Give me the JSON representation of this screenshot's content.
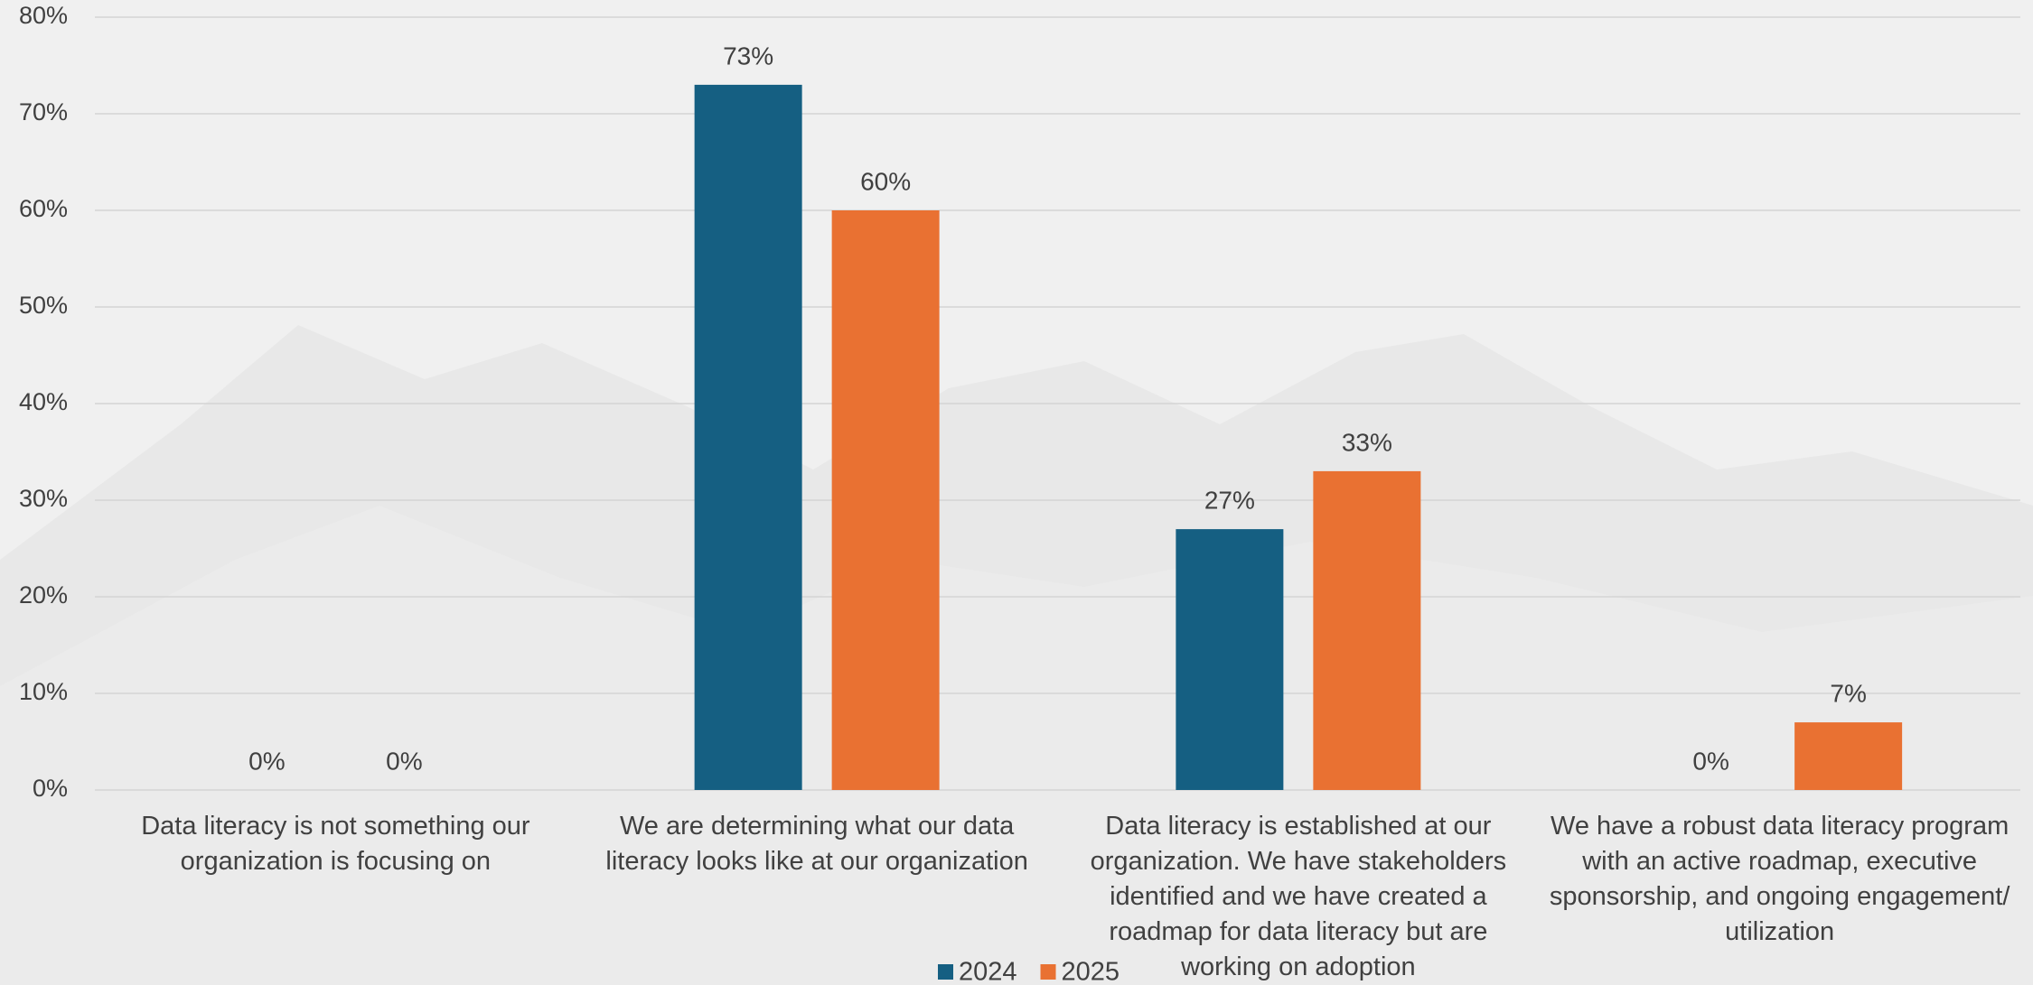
{
  "chart_data": {
    "type": "bar",
    "categories": [
      "Data literacy is not something our organization is focusing on",
      "We are determining what our data literacy looks like at our organization",
      "Data literacy is established at our organization. We have stakeholders identified and we have created a roadmap for data literacy but are working on adoption",
      "We have a robust data literacy program with an active roadmap, executive sponsorship, and ongoing engagement/ utilization"
    ],
    "series": [
      {
        "name": "2024",
        "color": "#155f82",
        "values": [
          0,
          73,
          27,
          0
        ],
        "value_labels": [
          "0%",
          "73%",
          "27%",
          "0%"
        ]
      },
      {
        "name": "2025",
        "color": "#e97132",
        "values": [
          0,
          60,
          33,
          7
        ],
        "value_labels": [
          "0%",
          "60%",
          "33%",
          "7%"
        ]
      }
    ],
    "ylim": [
      0,
      80
    ],
    "yticks": [
      {
        "value": 0,
        "label": "0%"
      },
      {
        "value": 10,
        "label": "10%"
      },
      {
        "value": 20,
        "label": "20%"
      },
      {
        "value": 30,
        "label": "30%"
      },
      {
        "value": 40,
        "label": "40%"
      },
      {
        "value": 50,
        "label": "50%"
      },
      {
        "value": 60,
        "label": "60%"
      },
      {
        "value": 70,
        "label": "70%"
      },
      {
        "value": 80,
        "label": "80%"
      }
    ],
    "grid": true,
    "legend": "bottom"
  }
}
